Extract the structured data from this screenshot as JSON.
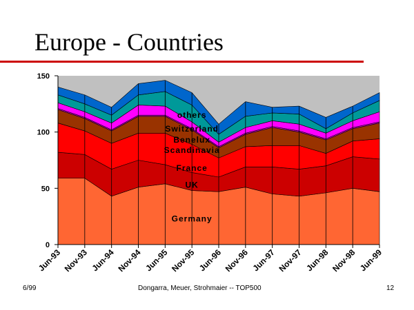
{
  "slide": {
    "title": "Europe - Countries",
    "footer_left": "6/99",
    "footer_center": "Dongarra, Meuer, Strohmaier -- TOP500",
    "footer_right": "12",
    "rule_color": "#cc0000"
  },
  "chart_data": {
    "type": "area",
    "stacked": true,
    "categories": [
      "Jun-93",
      "Nov-93",
      "Jun-94",
      "Nov-94",
      "Jun-95",
      "Nov-95",
      "Jun-96",
      "Nov-96",
      "Jun-97",
      "Nov-97",
      "Jun-98",
      "Nov-98",
      "Jun-99"
    ],
    "ylim": [
      0,
      150
    ],
    "yticks": [
      0,
      50,
      100,
      150
    ],
    "series": [
      {
        "name": "Germany",
        "color": "#ff6633",
        "values": [
          59,
          59,
          43,
          51,
          54,
          48,
          47,
          51,
          45,
          43,
          46,
          50,
          47
        ]
      },
      {
        "name": "UK",
        "color": "#cc0000",
        "values": [
          23,
          21,
          24,
          24,
          17,
          16,
          13,
          18,
          24,
          24,
          24,
          28,
          29
        ]
      },
      {
        "name": "France",
        "color": "#ff0000",
        "values": [
          26,
          21,
          23,
          24,
          28,
          25,
          17,
          18,
          19,
          21,
          11,
          14,
          18
        ]
      },
      {
        "name": "Scandinavia",
        "color": "#993300",
        "values": [
          12,
          11,
          11,
          15,
          15,
          13,
          9,
          11,
          16,
          12,
          12,
          11,
          14
        ]
      },
      {
        "name": "Benelux",
        "color": "#cc00cc",
        "values": [
          1,
          1,
          1,
          1,
          1,
          1,
          1,
          1,
          1,
          1,
          1,
          1,
          1
        ]
      },
      {
        "name": "Switzerland",
        "color": "#ff00ff",
        "values": [
          5,
          5,
          6,
          9,
          8,
          6,
          4,
          5,
          5,
          6,
          5,
          6,
          9
        ]
      },
      {
        "name": "others",
        "color": "#009999",
        "values": [
          7,
          7,
          7,
          9,
          13,
          15,
          7,
          10,
          7,
          9,
          4,
          7,
          10
        ]
      },
      {
        "name": "",
        "color": "#0066cc",
        "values": [
          7,
          8,
          7,
          10,
          10,
          11,
          9,
          13,
          5,
          7,
          10,
          6,
          7
        ]
      }
    ],
    "remainder_color": "#c0c0c0",
    "series_labels": [
      {
        "text": "Germany",
        "x": 5.0,
        "y": 23
      },
      {
        "text": "UK",
        "x": 5.0,
        "y": 53
      },
      {
        "text": "France",
        "x": 5.0,
        "y": 68
      },
      {
        "text": "Scandinavia",
        "x": 5.0,
        "y": 84
      },
      {
        "text": "Benelux",
        "x": 5.0,
        "y": 93
      },
      {
        "text": "Switzerland",
        "x": 5.0,
        "y": 103
      },
      {
        "text": "others",
        "x": 5.0,
        "y": 115
      }
    ],
    "grid": false,
    "legend": "none"
  }
}
